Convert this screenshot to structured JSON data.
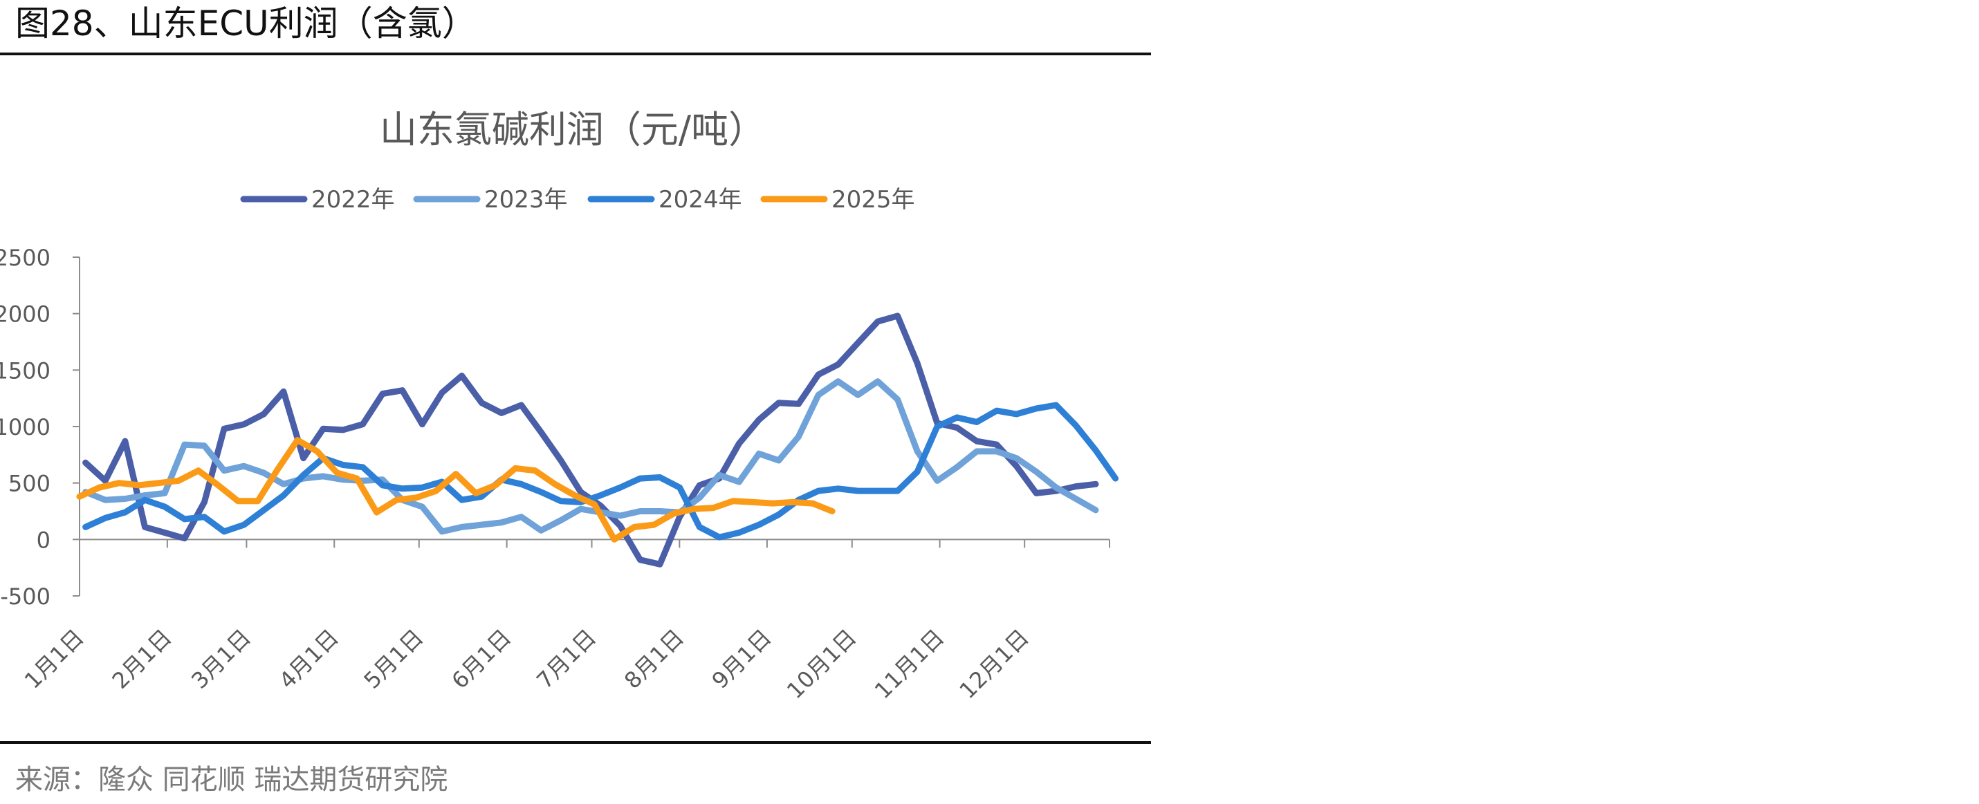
{
  "figure": {
    "title": "图28、山东ECU利润（含氯）",
    "source": "来源：隆众 同花顺  瑞达期货研究院"
  },
  "chart_data": {
    "type": "line",
    "title": "山东氯碱利润（元/吨）",
    "xlabel": "",
    "ylabel": "",
    "ylim": [
      -500,
      2500
    ],
    "yticks": [
      -500,
      0,
      500,
      1000,
      1500,
      2000,
      2500
    ],
    "xlim": [
      1,
      53
    ],
    "x_tick_labels": [
      "1月1日",
      "2月1日",
      "3月1日",
      "4月1日",
      "5月1日",
      "6月1日",
      "7月1日",
      "8月1日",
      "9月1日",
      "10月1日",
      "11月1日",
      "12月1日"
    ],
    "x_tick_positions": [
      1,
      5.43,
      9.43,
      13.86,
      18.14,
      22.57,
      26.86,
      31.29,
      35.71,
      40,
      44.43,
      48.71
    ],
    "legend_position": "top",
    "grid": false,
    "series": [
      {
        "name": "2022年",
        "color": "#4a5fa8",
        "points": [
          [
            1.3,
            680
          ],
          [
            2.3,
            520
          ],
          [
            3.3,
            870
          ],
          [
            4.3,
            110
          ],
          [
            5.3,
            60
          ],
          [
            6.3,
            10
          ],
          [
            7.3,
            330
          ],
          [
            8.3,
            980
          ],
          [
            9.3,
            1020
          ],
          [
            10.3,
            1110
          ],
          [
            11.3,
            1310
          ],
          [
            12.3,
            720
          ],
          [
            13.3,
            980
          ],
          [
            14.3,
            970
          ],
          [
            15.3,
            1020
          ],
          [
            16.3,
            1290
          ],
          [
            17.3,
            1320
          ],
          [
            18.3,
            1020
          ],
          [
            19.3,
            1300
          ],
          [
            20.3,
            1450
          ],
          [
            21.3,
            1210
          ],
          [
            22.3,
            1120
          ],
          [
            23.3,
            1190
          ],
          [
            24.3,
            950
          ],
          [
            25.3,
            700
          ],
          [
            26.3,
            420
          ],
          [
            27.3,
            300
          ],
          [
            28.3,
            120
          ],
          [
            29.3,
            -180
          ],
          [
            30.3,
            -220
          ],
          [
            31.3,
            200
          ],
          [
            32.3,
            480
          ],
          [
            33.3,
            540
          ],
          [
            34.3,
            850
          ],
          [
            35.3,
            1060
          ],
          [
            36.3,
            1210
          ],
          [
            37.3,
            1200
          ],
          [
            38.3,
            1460
          ],
          [
            39.3,
            1550
          ],
          [
            40.3,
            1740
          ],
          [
            41.3,
            1930
          ],
          [
            42.3,
            1980
          ],
          [
            43.3,
            1560
          ],
          [
            44.3,
            1030
          ],
          [
            45.3,
            990
          ],
          [
            46.3,
            870
          ],
          [
            47.3,
            840
          ],
          [
            48.3,
            650
          ],
          [
            49.3,
            410
          ],
          [
            50.3,
            430
          ],
          [
            51.3,
            470
          ],
          [
            52.3,
            490
          ]
        ]
      },
      {
        "name": "2023年",
        "color": "#6fa2d8",
        "points": [
          [
            1.3,
            420
          ],
          [
            2.3,
            350
          ],
          [
            3.3,
            360
          ],
          [
            4.3,
            390
          ],
          [
            5.3,
            410
          ],
          [
            6.3,
            840
          ],
          [
            7.3,
            830
          ],
          [
            8.3,
            610
          ],
          [
            9.3,
            650
          ],
          [
            10.3,
            590
          ],
          [
            11.3,
            490
          ],
          [
            12.3,
            540
          ],
          [
            13.3,
            560
          ],
          [
            14.3,
            530
          ],
          [
            15.3,
            520
          ],
          [
            16.3,
            530
          ],
          [
            17.3,
            350
          ],
          [
            18.3,
            290
          ],
          [
            19.3,
            70
          ],
          [
            20.3,
            110
          ],
          [
            21.3,
            130
          ],
          [
            22.3,
            150
          ],
          [
            23.3,
            200
          ],
          [
            24.3,
            80
          ],
          [
            25.3,
            170
          ],
          [
            26.3,
            270
          ],
          [
            27.3,
            240
          ],
          [
            28.3,
            210
          ],
          [
            29.3,
            250
          ],
          [
            30.3,
            250
          ],
          [
            31.3,
            240
          ],
          [
            32.3,
            370
          ],
          [
            33.3,
            570
          ],
          [
            34.3,
            510
          ],
          [
            35.3,
            760
          ],
          [
            36.3,
            700
          ],
          [
            37.3,
            910
          ],
          [
            38.3,
            1280
          ],
          [
            39.3,
            1400
          ],
          [
            40.3,
            1280
          ],
          [
            41.3,
            1400
          ],
          [
            42.3,
            1240
          ],
          [
            43.3,
            780
          ],
          [
            44.3,
            520
          ],
          [
            45.3,
            640
          ],
          [
            46.3,
            780
          ],
          [
            47.3,
            780
          ],
          [
            48.3,
            720
          ],
          [
            49.3,
            600
          ],
          [
            50.3,
            460
          ],
          [
            51.3,
            360
          ],
          [
            52.3,
            260
          ]
        ]
      },
      {
        "name": "2024年",
        "color": "#2e7fd6",
        "points": [
          [
            1.3,
            110
          ],
          [
            2.3,
            190
          ],
          [
            3.3,
            240
          ],
          [
            4.3,
            350
          ],
          [
            5.3,
            290
          ],
          [
            6.3,
            180
          ],
          [
            7.3,
            200
          ],
          [
            8.3,
            70
          ],
          [
            9.3,
            130
          ],
          [
            10.3,
            260
          ],
          [
            11.3,
            390
          ],
          [
            12.3,
            570
          ],
          [
            13.3,
            720
          ],
          [
            14.3,
            660
          ],
          [
            15.3,
            640
          ],
          [
            16.3,
            480
          ],
          [
            17.3,
            450
          ],
          [
            18.3,
            460
          ],
          [
            19.3,
            510
          ],
          [
            20.3,
            350
          ],
          [
            21.3,
            380
          ],
          [
            22.3,
            530
          ],
          [
            23.3,
            490
          ],
          [
            24.3,
            420
          ],
          [
            25.3,
            340
          ],
          [
            26.3,
            330
          ],
          [
            27.3,
            390
          ],
          [
            28.3,
            460
          ],
          [
            29.3,
            540
          ],
          [
            30.3,
            550
          ],
          [
            31.3,
            460
          ],
          [
            32.3,
            110
          ],
          [
            33.3,
            20
          ],
          [
            34.3,
            60
          ],
          [
            35.3,
            130
          ],
          [
            36.3,
            220
          ],
          [
            37.3,
            350
          ],
          [
            38.3,
            430
          ],
          [
            39.3,
            450
          ],
          [
            40.3,
            430
          ],
          [
            41.3,
            430
          ],
          [
            42.3,
            430
          ],
          [
            43.3,
            600
          ],
          [
            44.3,
            1000
          ],
          [
            45.3,
            1080
          ],
          [
            46.3,
            1040
          ],
          [
            47.3,
            1140
          ],
          [
            48.3,
            1110
          ],
          [
            49.3,
            1160
          ],
          [
            50.3,
            1190
          ],
          [
            51.3,
            1010
          ],
          [
            52.3,
            790
          ],
          [
            53.3,
            540
          ]
        ]
      },
      {
        "name": "2025年",
        "color": "#fb9a16",
        "points": [
          [
            1,
            380
          ],
          [
            2,
            460
          ],
          [
            3,
            500
          ],
          [
            4,
            480
          ],
          [
            5,
            500
          ],
          [
            6,
            520
          ],
          [
            7,
            610
          ],
          [
            8,
            480
          ],
          [
            9,
            340
          ],
          [
            10,
            340
          ],
          [
            11,
            620
          ],
          [
            12,
            880
          ],
          [
            13,
            780
          ],
          [
            14,
            590
          ],
          [
            15,
            540
          ],
          [
            16,
            240
          ],
          [
            17,
            350
          ],
          [
            18,
            370
          ],
          [
            19,
            430
          ],
          [
            20,
            580
          ],
          [
            21,
            410
          ],
          [
            22,
            480
          ],
          [
            23,
            630
          ],
          [
            24,
            610
          ],
          [
            25,
            490
          ],
          [
            26,
            390
          ],
          [
            27,
            310
          ],
          [
            28,
            0
          ],
          [
            29,
            110
          ],
          [
            30,
            130
          ],
          [
            31,
            230
          ],
          [
            32,
            270
          ],
          [
            33,
            280
          ],
          [
            34,
            340
          ],
          [
            35,
            330
          ],
          [
            36,
            320
          ],
          [
            37,
            330
          ],
          [
            38,
            320
          ],
          [
            39,
            250
          ]
        ]
      }
    ]
  }
}
